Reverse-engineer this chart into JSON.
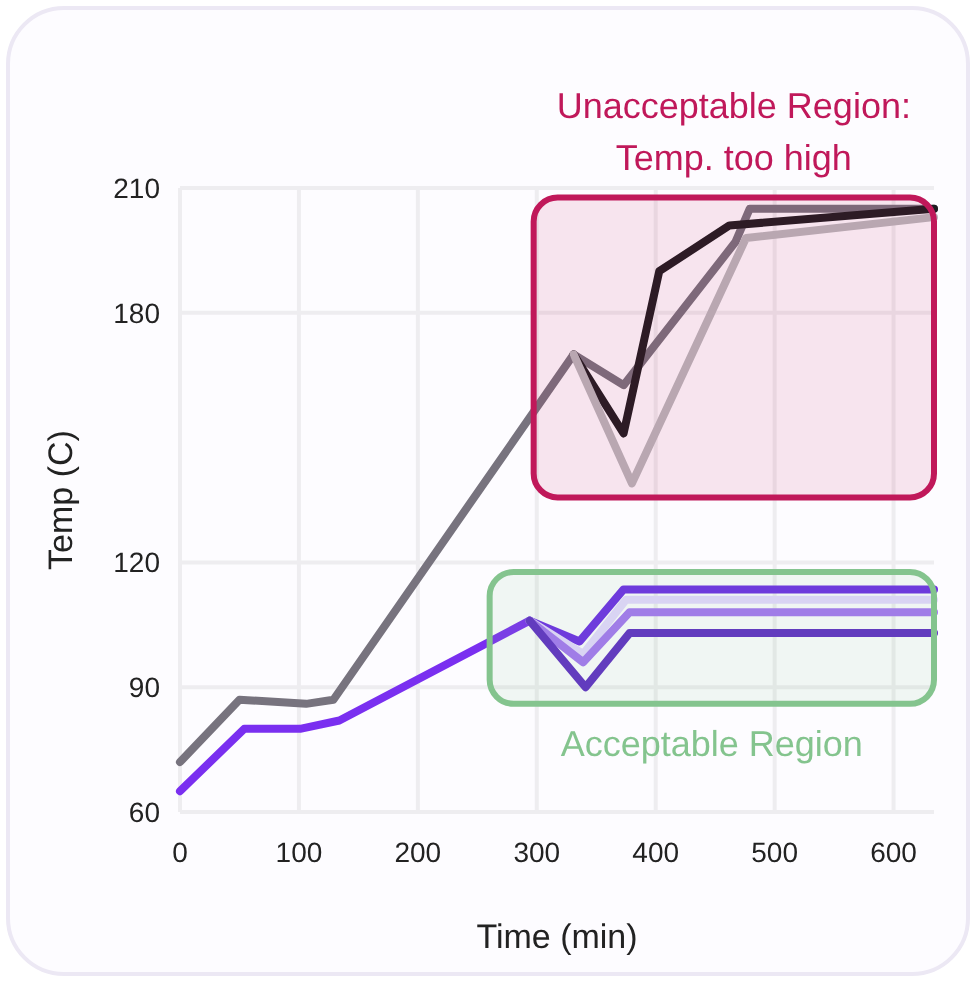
{
  "chart_data": {
    "type": "line",
    "xlabel": "Time (min)",
    "ylabel": "Temp (C)",
    "xlim": [
      0,
      634
    ],
    "xticks": [
      0,
      100,
      200,
      300,
      400,
      500,
      600
    ],
    "ylim": [
      60,
      210
    ],
    "yticks": [
      60,
      90,
      120,
      180,
      210
    ],
    "grid": true,
    "line_style": "solid",
    "marker": "none",
    "series": [
      {
        "color": "#77737e",
        "x": [
          0,
          50,
          106,
          129,
          331,
          373,
          467,
          479,
          634
        ],
        "values": [
          72,
          87,
          86,
          87,
          170,
          162.6,
          197,
          205,
          205
        ]
      },
      {
        "color": "#1c1c20",
        "x": [
          331,
          373,
          403,
          462,
          634
        ],
        "values": [
          170,
          151,
          190,
          201,
          205
        ]
      },
      {
        "color": "#b8b8bc",
        "x": [
          331,
          380,
          476,
          634
        ],
        "values": [
          170,
          139,
          198,
          203
        ]
      },
      {
        "color": "#7a2ff0",
        "x": [
          0,
          54,
          101,
          134,
          294
        ],
        "values": [
          65,
          80,
          80,
          82,
          106
        ]
      },
      {
        "color": "#6d2ce6",
        "x": [
          294,
          336,
          373,
          634
        ],
        "values": [
          106,
          101,
          113.5,
          113.5
        ]
      },
      {
        "color": "#e4d6ff",
        "x": [
          294,
          339,
          375,
          634
        ],
        "values": [
          106,
          98,
          111,
          111
        ]
      },
      {
        "color": "#a475f2",
        "x": [
          294,
          339,
          378,
          634
        ],
        "values": [
          106,
          96,
          108,
          108
        ]
      },
      {
        "color": "#5f2dc4",
        "x": [
          294,
          341,
          378,
          634
        ],
        "values": [
          106,
          90,
          103,
          103
        ]
      }
    ],
    "bands": [
      {
        "axis": "y",
        "from": 135.6,
        "to": 207.7,
        "label": "Unacceptable Region: Temp. too high",
        "color": "#c0185a"
      },
      {
        "axis": "y",
        "from": 86,
        "to": 117.7,
        "label": "Acceptable Region",
        "color": "#84c48e"
      }
    ]
  }
}
